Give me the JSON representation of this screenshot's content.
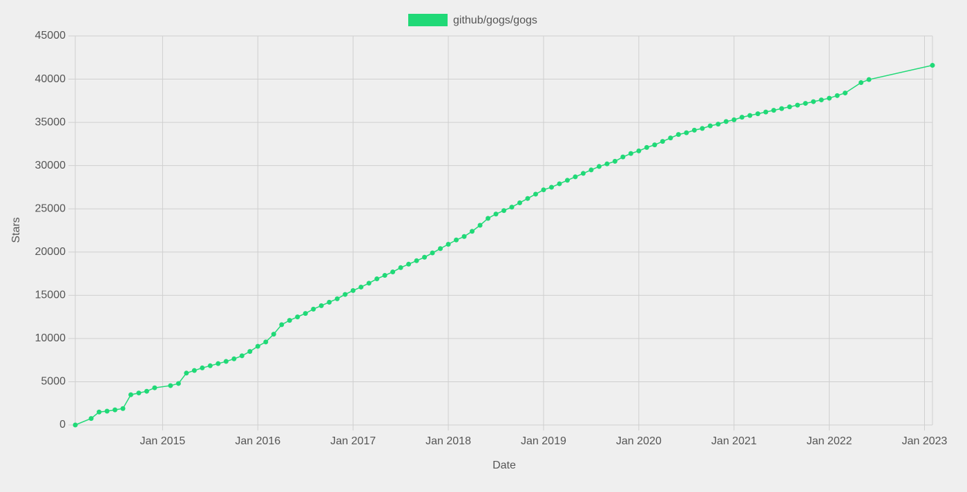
{
  "chart_data": {
    "type": "line",
    "x_label": "Date",
    "y_label": "Stars",
    "x": [
      "2014-02",
      "2014-04",
      "2014-05",
      "2014-06",
      "2014-07",
      "2014-08",
      "2014-09",
      "2014-10",
      "2014-11",
      "2014-12",
      "2015-02",
      "2015-03",
      "2015-04",
      "2015-05",
      "2015-06",
      "2015-07",
      "2015-08",
      "2015-09",
      "2015-10",
      "2015-11",
      "2015-12",
      "2016-01",
      "2016-02",
      "2016-03",
      "2016-04",
      "2016-05",
      "2016-06",
      "2016-07",
      "2016-08",
      "2016-09",
      "2016-10",
      "2016-11",
      "2016-12",
      "2017-01",
      "2017-02",
      "2017-03",
      "2017-04",
      "2017-05",
      "2017-06",
      "2017-07",
      "2017-08",
      "2017-09",
      "2017-10",
      "2017-11",
      "2017-12",
      "2018-01",
      "2018-02",
      "2018-03",
      "2018-04",
      "2018-05",
      "2018-06",
      "2018-07",
      "2018-08",
      "2018-09",
      "2018-10",
      "2018-11",
      "2018-12",
      "2019-01",
      "2019-02",
      "2019-03",
      "2019-04",
      "2019-05",
      "2019-06",
      "2019-07",
      "2019-08",
      "2019-09",
      "2019-10",
      "2019-11",
      "2019-12",
      "2020-01",
      "2020-02",
      "2020-03",
      "2020-04",
      "2020-05",
      "2020-06",
      "2020-07",
      "2020-08",
      "2020-09",
      "2020-10",
      "2020-11",
      "2020-12",
      "2021-01",
      "2021-02",
      "2021-03",
      "2021-04",
      "2021-05",
      "2021-06",
      "2021-07",
      "2021-08",
      "2021-09",
      "2021-10",
      "2021-11",
      "2021-12",
      "2022-01",
      "2022-02",
      "2022-03",
      "2022-05",
      "2022-06",
      "2023-02"
    ],
    "series": [
      {
        "name": "github/gogs/gogs",
        "color": "#20d977",
        "values": [
          0,
          750,
          1500,
          1600,
          1750,
          1900,
          3500,
          3700,
          3900,
          4300,
          4550,
          4800,
          6000,
          6300,
          6600,
          6850,
          7100,
          7350,
          7650,
          8000,
          8500,
          9100,
          9600,
          10500,
          11600,
          12100,
          12500,
          12900,
          13400,
          13800,
          14200,
          14600,
          15100,
          15550,
          15950,
          16400,
          16900,
          17300,
          17700,
          18200,
          18600,
          19000,
          19400,
          19900,
          20400,
          20900,
          21400,
          21800,
          22400,
          23100,
          23900,
          24400,
          24800,
          25200,
          25700,
          26200,
          26700,
          27200,
          27500,
          27900,
          28300,
          28700,
          29100,
          29500,
          29900,
          30200,
          30500,
          31000,
          31400,
          31700,
          32100,
          32400,
          32800,
          33200,
          33600,
          33800,
          34100,
          34300,
          34600,
          34800,
          35100,
          35300,
          35600,
          35800,
          36000,
          36200,
          36400,
          36600,
          36800,
          37000,
          37200,
          37400,
          37600,
          37800,
          38100,
          38400,
          39600,
          39950,
          41600
        ]
      }
    ],
    "xlim": [
      "2014-02",
      "2023-02"
    ],
    "xticks": [
      {
        "value": "2015-01",
        "label": "Jan 2015"
      },
      {
        "value": "2016-01",
        "label": "Jan 2016"
      },
      {
        "value": "2017-01",
        "label": "Jan 2017"
      },
      {
        "value": "2018-01",
        "label": "Jan 2018"
      },
      {
        "value": "2019-01",
        "label": "Jan 2019"
      },
      {
        "value": "2020-01",
        "label": "Jan 2020"
      },
      {
        "value": "2021-01",
        "label": "Jan 2021"
      },
      {
        "value": "2022-01",
        "label": "Jan 2022"
      },
      {
        "value": "2023-01",
        "label": "Jan 2023"
      }
    ],
    "ylim": [
      0,
      45000
    ],
    "yticks": [
      0,
      5000,
      10000,
      15000,
      20000,
      25000,
      30000,
      35000,
      40000,
      45000
    ],
    "grid": true,
    "legend": "top"
  }
}
